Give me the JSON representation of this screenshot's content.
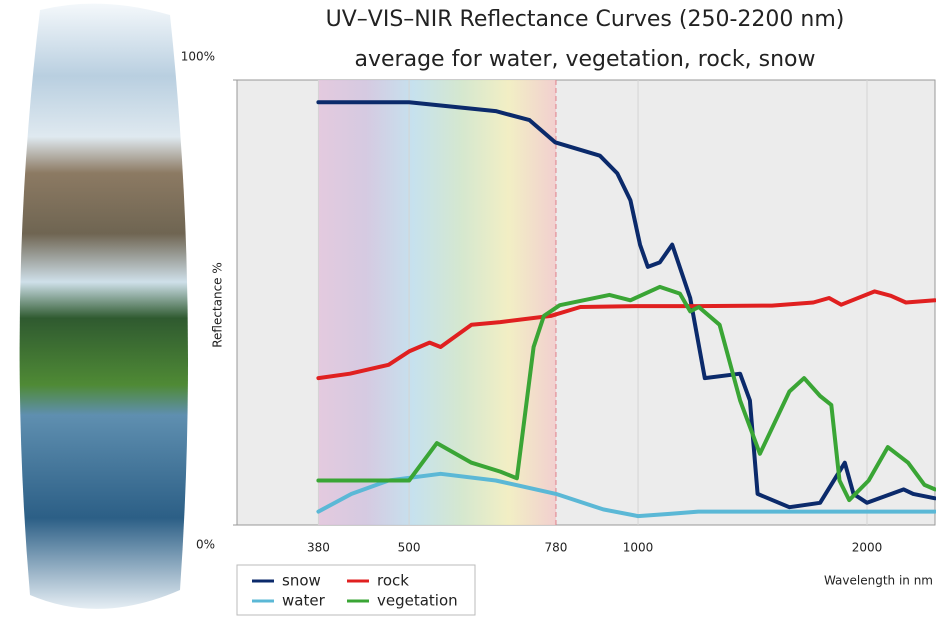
{
  "chart_data": {
    "type": "line",
    "title": "UV–VIS–NIR Reflectance Curves (250-2200 nm)",
    "subtitle": "average for water, vegetation, rock, snow",
    "y_label": "Reflectance %",
    "x_label": "Wavelength in nm",
    "xscale": "log",
    "xlim": [
      297,
      2457
    ],
    "xticks": [
      380,
      500,
      780,
      1000,
      2000
    ],
    "ylim": [
      0,
      100
    ],
    "yticks": [
      {
        "value": 0,
        "label": "0%"
      },
      {
        "value": 100,
        "label": "100%"
      }
    ],
    "grid": true,
    "legend": "bottom-left",
    "series": [
      {
        "name": "snow",
        "color": "#0b2a6b",
        "x": [
          380,
          500,
          650,
          720,
          778,
          891,
          939,
          977,
          1006,
          1030,
          1068,
          1109,
          1171,
          1224,
          1362,
          1403,
          1436,
          1581,
          1735,
          1870,
          1920,
          2000,
          2235,
          2300,
          2457
        ],
        "values": [
          95,
          95,
          93,
          91,
          86,
          83,
          79,
          73,
          63,
          58,
          59,
          63,
          51,
          33,
          34,
          28,
          7,
          4,
          5,
          14,
          7,
          5,
          8,
          7,
          6
        ]
      },
      {
        "name": "water",
        "color": "#5bb8d6",
        "x": [
          380,
          420,
          470,
          550,
          650,
          780,
          900,
          1000,
          1100,
          1200,
          2457
        ],
        "values": [
          3,
          7,
          10,
          11.5,
          10,
          7,
          3.5,
          2,
          2.5,
          3,
          3
        ]
      },
      {
        "name": "rock",
        "color": "#e02020",
        "x": [
          380,
          418,
          470,
          500,
          532,
          550,
          604,
          659,
          768,
          840,
          1001,
          1200,
          1500,
          1700,
          1783,
          1850,
          2047,
          2150,
          2250,
          2457
        ],
        "values": [
          33,
          34,
          36,
          39,
          41,
          40,
          45,
          45.6,
          47,
          49,
          49.2,
          49.2,
          49.3,
          50,
          51,
          49.5,
          52.5,
          51.5,
          50,
          50.5
        ]
      },
      {
        "name": "vegetation",
        "color": "#3aa535",
        "x": [
          380,
          500,
          544,
          604,
          659,
          693,
          729,
          752,
          789,
          917,
          977,
          1068,
          1135,
          1171,
          1202,
          1280,
          1362,
          1446,
          1581,
          1653,
          1735,
          1795,
          1840,
          1895,
          2010,
          2130,
          2265,
          2380,
          2457
        ],
        "values": [
          10,
          10,
          18.4,
          14,
          12,
          10.5,
          40,
          47,
          49.4,
          51.7,
          50.5,
          53.5,
          52,
          48,
          49,
          45,
          28,
          16,
          30,
          33,
          29,
          27,
          10,
          5.6,
          10,
          17.5,
          14,
          9,
          8
        ]
      }
    ]
  }
}
